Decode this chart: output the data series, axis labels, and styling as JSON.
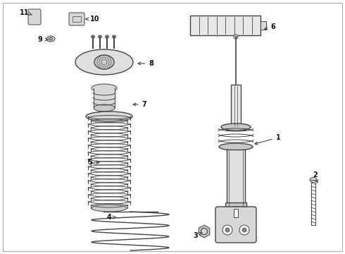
{
  "background_color": "#ffffff",
  "line_color": "#444444",
  "label_color": "#111111",
  "fig_width": 4.9,
  "fig_height": 3.6,
  "dpi": 100,
  "border_color": "#aaaaaa"
}
